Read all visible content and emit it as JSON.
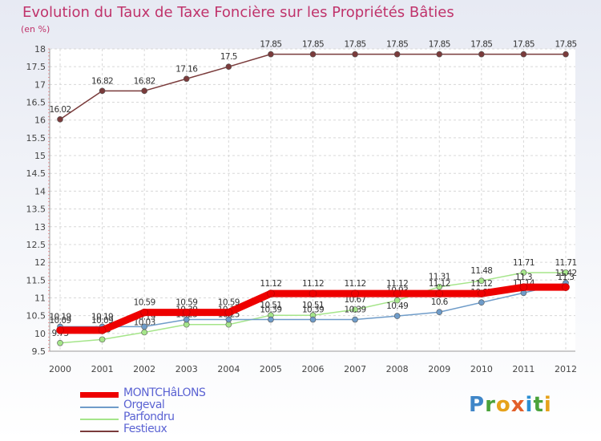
{
  "header": {
    "title": "Evolution du Taux de Taxe Foncière sur les Propriétés Bâties",
    "subtitle": "(en %)"
  },
  "logo": {
    "text": "Proxiti",
    "letter_colors": [
      "#3f86c8",
      "#4aa23a",
      "#e6a21b",
      "#e25f2a",
      "#2b8fd3",
      "#4aa23a",
      "#e6a21b"
    ]
  },
  "chart_data": {
    "type": "line",
    "title": "Evolution du Taux de Taxe Foncière sur les Propriétés Bâties",
    "ylabel": "(en %)",
    "x": [
      "2000",
      "2001",
      "2002",
      "2003",
      "2004",
      "2005",
      "2006",
      "2007",
      "2008",
      "2009",
      "2010",
      "2011",
      "2012"
    ],
    "ylim": [
      9.5,
      18
    ],
    "yticks": [
      "9.5",
      "10",
      "10.5",
      "11",
      "11.5",
      "12",
      "12.5",
      "13",
      "13.5",
      "14",
      "14.5",
      "15",
      "15.5",
      "16",
      "16.5",
      "17",
      "17.5",
      "18"
    ],
    "grid": true,
    "series": [
      {
        "name": "Festieux",
        "color": "#7a3b3b",
        "values": [
          16.02,
          16.82,
          16.82,
          17.16,
          17.5,
          17.85,
          17.85,
          17.85,
          17.85,
          17.85,
          17.85,
          17.85,
          17.85
        ],
        "labels": [
          "16.02",
          "16.82",
          "16.82",
          "17.16",
          "17.5",
          "17.85",
          "17.85",
          "17.85",
          "17.85",
          "17.85",
          "17.85",
          "17.85",
          "17.85"
        ]
      },
      {
        "name": "Parfondru",
        "color": "#a5e58a",
        "values": [
          9.73,
          9.83,
          10.03,
          10.25,
          10.25,
          10.51,
          10.51,
          10.67,
          10.93,
          11.31,
          11.48,
          11.71,
          11.71
        ],
        "labels": [
          "9.73",
          "9.83",
          "10.03",
          "10.25",
          "10.25",
          "10.51",
          "10.51",
          "10.67",
          "10.93",
          "11.31",
          "11.48",
          "11.71",
          "11.71"
        ]
      },
      {
        "name": "Orgeval",
        "color": "#6f9cc9",
        "values": [
          10.19,
          10.19,
          10.19,
          10.39,
          10.39,
          10.39,
          10.39,
          10.39,
          10.49,
          10.6,
          10.87,
          11.14,
          11.42
        ],
        "labels": [
          "10.19",
          "10.19",
          "10.19",
          "10.39",
          "10.39",
          "10.39",
          "10.39",
          "10.39",
          "10.49",
          "10.6",
          "10.87",
          "11.14",
          "11.42"
        ]
      },
      {
        "name": "MONTCHâLONS",
        "color": "#ee0000",
        "values": [
          10.09,
          10.09,
          10.59,
          10.59,
          10.59,
          11.12,
          11.12,
          11.12,
          11.12,
          11.12,
          11.12,
          11.3,
          11.3
        ],
        "labels": [
          "10.09",
          "10.09",
          "10.59",
          "10.59",
          "10.59",
          "11.12",
          "11.12",
          "11.12",
          "11.12",
          "11.12",
          "11.12",
          "11.3",
          "11.3"
        ]
      }
    ],
    "legend": [
      "MONTCHâLONS",
      "Orgeval",
      "Parfondru",
      "Festieux"
    ],
    "legend_position": "bottom-left"
  }
}
